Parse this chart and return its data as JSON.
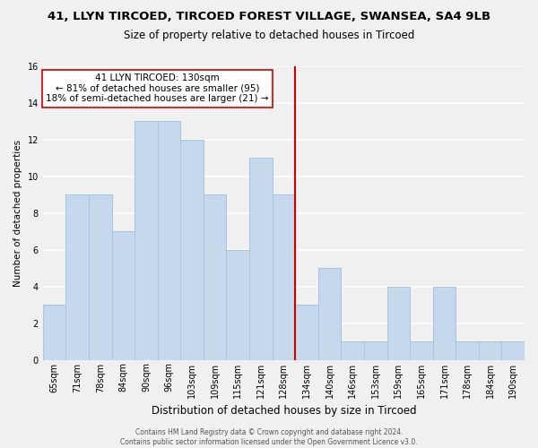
{
  "title1": "41, LLYN TIRCOED, TIRCOED FOREST VILLAGE, SWANSEA, SA4 9LB",
  "title2": "Size of property relative to detached houses in Tircoed",
  "xlabel": "Distribution of detached houses by size in Tircoed",
  "ylabel": "Number of detached properties",
  "bin_labels": [
    "65sqm",
    "71sqm",
    "78sqm",
    "84sqm",
    "90sqm",
    "96sqm",
    "103sqm",
    "109sqm",
    "115sqm",
    "121sqm",
    "128sqm",
    "134sqm",
    "140sqm",
    "146sqm",
    "153sqm",
    "159sqm",
    "165sqm",
    "171sqm",
    "178sqm",
    "184sqm",
    "190sqm"
  ],
  "bar_heights": [
    3,
    9,
    9,
    7,
    13,
    13,
    12,
    9,
    6,
    11,
    9,
    3,
    5,
    1,
    1,
    4,
    1,
    4,
    1,
    1,
    1
  ],
  "bar_color": "#c5d8ec",
  "bar_edge_color": "#a8c4de",
  "vline_x_idx": 10.5,
  "vline_color": "#cc0000",
  "annotation_title": "41 LLYN TIRCOED: 130sqm",
  "annotation_line1": "← 81% of detached houses are smaller (95)",
  "annotation_line2": "18% of semi-detached houses are larger (21) →",
  "annotation_box_color": "#ffffff",
  "annotation_box_edge": "#cc0000",
  "ylim": [
    0,
    16
  ],
  "yticks": [
    0,
    2,
    4,
    6,
    8,
    10,
    12,
    14,
    16
  ],
  "footer1": "Contains HM Land Registry data © Crown copyright and database right 2024.",
  "footer2": "Contains public sector information licensed under the Open Government Licence v3.0.",
  "bg_color": "#f0f0f0",
  "grid_color": "#ffffff",
  "title1_fontsize": 9.5,
  "title2_fontsize": 8.5,
  "xlabel_fontsize": 8.5,
  "ylabel_fontsize": 7.5,
  "tick_fontsize": 7.0,
  "annot_fontsize": 7.5,
  "footer_fontsize": 5.5
}
